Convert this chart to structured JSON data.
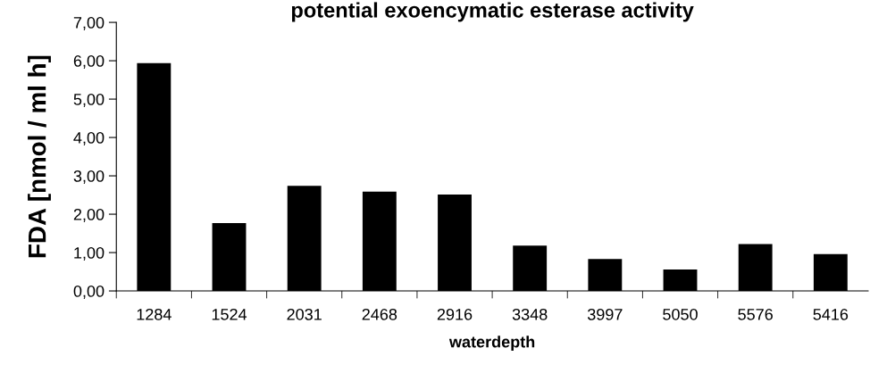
{
  "chart_data": {
    "type": "bar",
    "title": "potential exoencymatic esterase activity",
    "xlabel": "waterdepth",
    "ylabel": "FDA [nmol / ml h]",
    "categories": [
      "1284",
      "1524",
      "2031",
      "2468",
      "2916",
      "3348",
      "3997",
      "5050",
      "5576",
      "5416"
    ],
    "values": [
      5.94,
      1.77,
      2.74,
      2.59,
      2.51,
      1.18,
      0.83,
      0.56,
      1.22,
      0.96
    ],
    "color": "#000000",
    "ylim": [
      0,
      7
    ],
    "yticks": [
      {
        "value": 0,
        "label": "0,00"
      },
      {
        "value": 1,
        "label": "1,00"
      },
      {
        "value": 2,
        "label": "2,00"
      },
      {
        "value": 3,
        "label": "3,00"
      },
      {
        "value": 4,
        "label": "4,00"
      },
      {
        "value": 5,
        "label": "5,00"
      },
      {
        "value": 6,
        "label": "6,00"
      },
      {
        "value": 7,
        "label": "7,00"
      }
    ],
    "grid": false
  }
}
